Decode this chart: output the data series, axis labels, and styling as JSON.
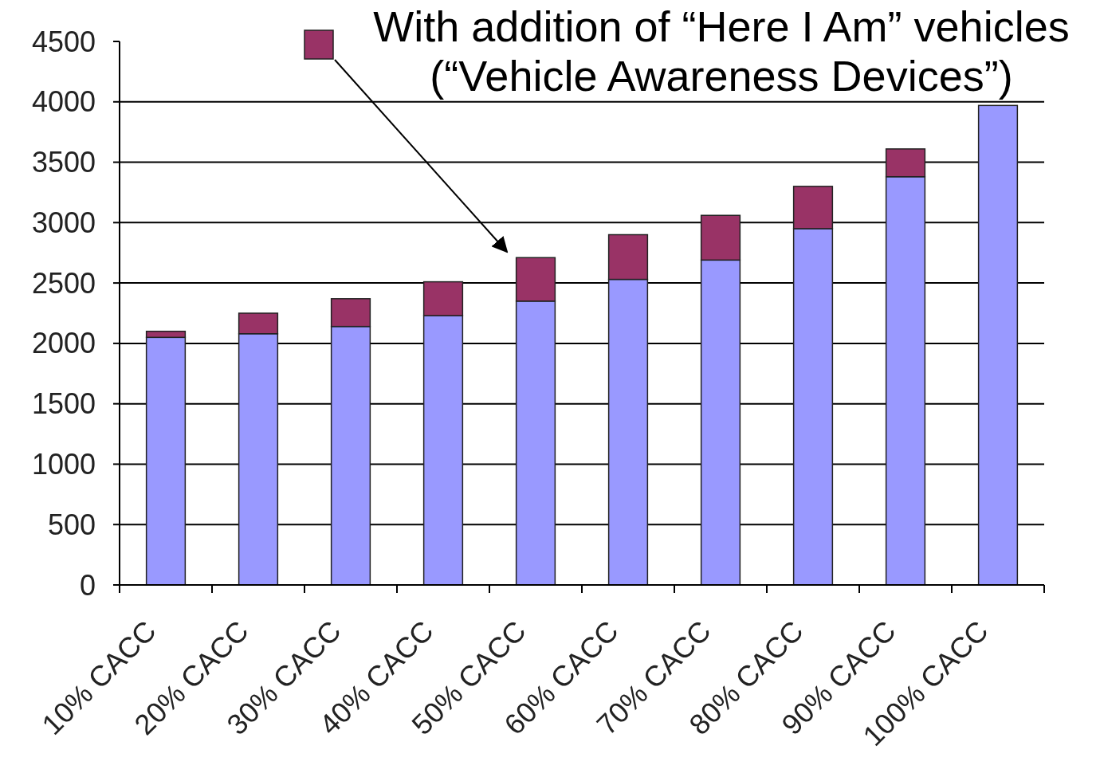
{
  "chart_data": {
    "type": "bar",
    "stacked": true,
    "categories": [
      "10% CACC",
      "20% CACC",
      "30% CACC",
      "40% CACC",
      "50% CACC",
      "60% CACC",
      "70% CACC",
      "80% CACC",
      "90% CACC",
      "100% CACC"
    ],
    "series": [
      {
        "color": "#9999ff",
        "values": [
          2050,
          2080,
          2140,
          2230,
          2350,
          2530,
          2690,
          2950,
          3380,
          3970
        ]
      },
      {
        "name": "With addition of “Here I Am” vehicles (“Vehicle Awareness Devices”)",
        "color": "#993366",
        "values": [
          50,
          170,
          230,
          280,
          360,
          370,
          370,
          350,
          230,
          null
        ]
      }
    ],
    "ylim": [
      0,
      4500
    ],
    "yticks": [
      0,
      500,
      1000,
      1500,
      2000,
      2500,
      3000,
      3500,
      4000,
      4500
    ],
    "grid": "y",
    "legend": "top"
  }
}
